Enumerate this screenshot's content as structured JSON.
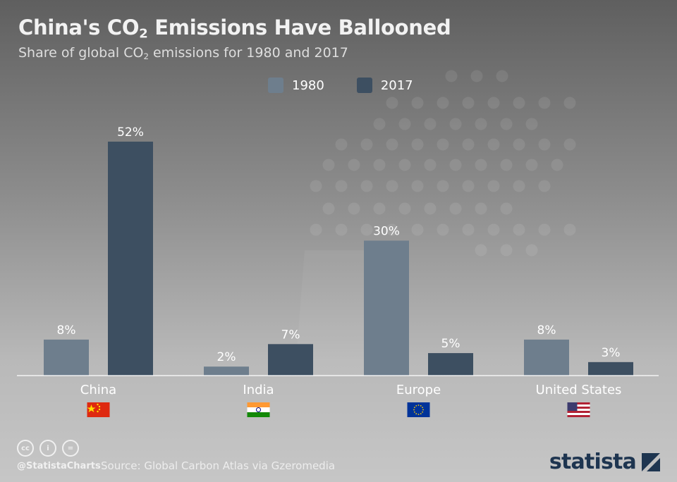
{
  "header": {
    "title_pre": "China's CO",
    "title_sub": "2",
    "title_post": " Emissions Have Ballooned",
    "subtitle_pre": "Share of global CO",
    "subtitle_sub": "2",
    "subtitle_post": " emissions for 1980 and 2017"
  },
  "colors": {
    "series_1980": "#6e7e8d",
    "series_2017": "#3d4f61",
    "brand": "#1e3550"
  },
  "chart_data": {
    "type": "bar",
    "title": "China's CO2 Emissions Have Ballooned",
    "subtitle": "Share of global CO2 emissions for 1980 and 2017",
    "categories": [
      "China",
      "India",
      "Europe",
      "United States"
    ],
    "series": [
      {
        "name": "1980",
        "values": [
          8,
          2,
          30,
          8
        ],
        "labels": [
          "8%",
          "2%",
          "30%",
          "8%"
        ]
      },
      {
        "name": "2017",
        "values": [
          52,
          7,
          5,
          3
        ],
        "labels": [
          "52%",
          "7%",
          "5%",
          "3%"
        ]
      }
    ],
    "ylim": [
      0,
      52
    ],
    "grid": false,
    "legend": "top-center",
    "category_icons": [
      "china-flag-icon",
      "india-flag-icon",
      "eu-flag-icon",
      "us-flag-icon"
    ]
  },
  "footer": {
    "license_icons": [
      "cc-icon",
      "by-icon",
      "nd-icon"
    ],
    "license_glyphs": [
      "cc",
      "i",
      "="
    ],
    "handle": "@StatistaCharts",
    "source": "Source: Global Carbon Atlas via Gzeromedia",
    "brand": "statista"
  }
}
